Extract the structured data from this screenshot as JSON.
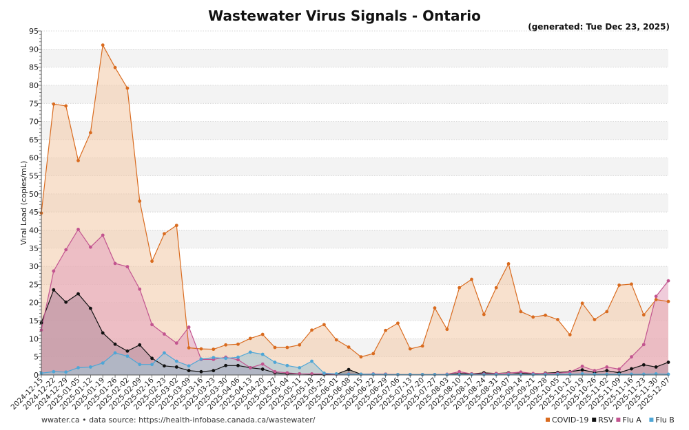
{
  "chart_data": {
    "type": "area",
    "title": "Wastewater Virus Signals - Ontario",
    "generated": "(generated: Tue Dec 23, 2025)",
    "ylabel": "Viral Load (copies/mL)",
    "xlabel": "",
    "ylim": [
      0,
      95
    ],
    "yticks": [
      0,
      5,
      10,
      15,
      20,
      25,
      30,
      35,
      40,
      45,
      50,
      55,
      60,
      65,
      70,
      75,
      80,
      85,
      90,
      95
    ],
    "grid": true,
    "legend_position": "bottom-right",
    "x": [
      "2024-12-15",
      "2024-12-22",
      "2024-12-29",
      "2025-01-05",
      "2025-01-12",
      "2025-01-19",
      "2025-01-26",
      "2025-02-02",
      "2025-02-09",
      "2025-02-16",
      "2025-02-23",
      "2025-03-02",
      "2025-03-09",
      "2025-03-16",
      "2025-03-23",
      "2025-03-30",
      "2025-04-06",
      "2025-04-13",
      "2025-04-20",
      "2025-04-27",
      "2025-05-04",
      "2025-05-11",
      "2025-05-18",
      "2025-05-25",
      "2025-06-01",
      "2025-06-08",
      "2025-06-15",
      "2025-06-22",
      "2025-06-29",
      "2025-07-06",
      "2025-07-13",
      "2025-07-20",
      "2025-07-27",
      "2025-08-03",
      "2025-08-10",
      "2025-08-17",
      "2025-08-24",
      "2025-08-31",
      "2025-09-07",
      "2025-09-14",
      "2025-09-21",
      "2025-09-28",
      "2025-10-05",
      "2025-10-12",
      "2025-10-19",
      "2025-10-26",
      "2025-11-02",
      "2025-11-09",
      "2025-11-16",
      "2025-11-23",
      "2025-11-30",
      "2025-12-07"
    ],
    "series": [
      {
        "name": "COVID-19",
        "color": "#d96b1f",
        "fill": "#f2c9a6",
        "values": [
          44.7,
          74.8,
          74.3,
          59.2,
          66.9,
          91.1,
          84.9,
          79.2,
          48.0,
          31.4,
          39.0,
          41.3,
          7.5,
          7.2,
          7.1,
          8.3,
          8.5,
          10.1,
          11.2,
          7.6,
          7.6,
          8.3,
          12.4,
          13.9,
          9.7,
          7.7,
          5.0,
          5.9,
          12.3,
          14.3,
          7.2,
          8.0,
          18.5,
          12.6,
          24.1,
          26.4,
          16.7,
          24.1,
          30.7,
          17.5,
          16.0,
          16.5,
          15.3,
          11.1,
          19.8,
          15.3,
          17.5,
          24.8,
          25.1,
          16.6,
          20.8,
          20.3
        ]
      },
      {
        "name": "RSV",
        "color": "#111111",
        "fill": "#777777",
        "values": [
          14.4,
          23.5,
          20.1,
          22.4,
          18.4,
          11.6,
          8.5,
          6.6,
          8.3,
          4.6,
          2.5,
          2.2,
          1.2,
          0.9,
          1.2,
          2.6,
          2.6,
          2.0,
          1.6,
          0.6,
          0.3,
          0.3,
          0.2,
          0.1,
          0.2,
          1.5,
          0.2,
          0.2,
          0.2,
          0.1,
          0.1,
          0.1,
          0.1,
          0.1,
          0.4,
          0.3,
          0.6,
          0.4,
          0.6,
          0.5,
          0.2,
          0.5,
          0.7,
          0.9,
          1.4,
          0.7,
          1.2,
          0.6,
          1.7,
          2.8,
          2.2,
          3.5
        ]
      },
      {
        "name": "Flu A",
        "color": "#c2548f",
        "fill": "#e3a3bd",
        "values": [
          12.4,
          28.7,
          34.6,
          40.2,
          35.3,
          38.6,
          30.8,
          29.9,
          23.7,
          13.9,
          11.3,
          8.8,
          13.2,
          4.3,
          4.3,
          4.9,
          4.2,
          2.0,
          3.0,
          0.9,
          0.6,
          0.3,
          0.3,
          0.3,
          0.2,
          0.3,
          0.2,
          0.3,
          0.2,
          0.1,
          0.1,
          0.1,
          0.1,
          0.2,
          0.9,
          0.3,
          0.3,
          0.4,
          0.5,
          0.8,
          0.4,
          0.4,
          0.5,
          0.8,
          2.4,
          1.2,
          2.2,
          1.6,
          5.0,
          8.4,
          21.7,
          26.0
        ]
      },
      {
        "name": "Flu B",
        "color": "#4ea6d6",
        "fill": "#9bc4d6",
        "values": [
          0.5,
          0.9,
          0.8,
          2.0,
          2.2,
          3.3,
          6.1,
          5.2,
          2.9,
          2.9,
          6.1,
          3.8,
          2.5,
          4.4,
          4.8,
          4.6,
          4.9,
          6.3,
          5.7,
          3.5,
          2.6,
          2.0,
          3.8,
          0.5,
          0.3,
          0.2,
          0.2,
          0.2,
          0.1,
          0.1,
          0.1,
          0.1,
          0.1,
          0.1,
          0.1,
          0.1,
          0.1,
          0.1,
          0.1,
          0.1,
          0.1,
          0.1,
          0.2,
          0.2,
          0.3,
          0.2,
          0.2,
          0.2,
          0.2,
          0.2,
          0.3,
          0.2
        ]
      }
    ]
  },
  "footer": {
    "source": "wwater.ca • data source: https://health-infobase.canada.ca/wastewater/"
  }
}
